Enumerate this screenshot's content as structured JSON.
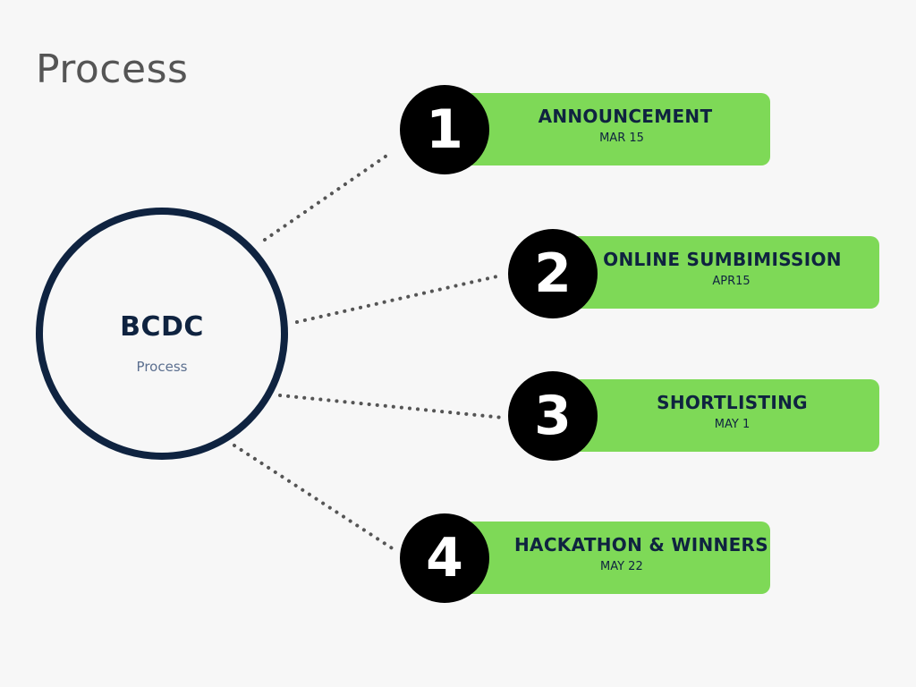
{
  "title": "Process",
  "hub": {
    "title": "BCDC",
    "subtitle": "Process"
  },
  "steps": [
    {
      "number": "1",
      "label": "ANNOUNCEMENT",
      "date": "MAR 15"
    },
    {
      "number": "2",
      "label": "ONLINE SUMBIMISSION",
      "date": "APR15"
    },
    {
      "number": "3",
      "label": "SHORTLISTING",
      "date": "MAY 1"
    },
    {
      "number": "4",
      "label": "HACKATHON & WINNERS",
      "date": "MAY 22"
    }
  ],
  "colors": {
    "background": "#f7f7f7",
    "hub_ring": "#0f2340",
    "card": "#7ed957",
    "badge": "#000000",
    "connector": "#555555"
  }
}
